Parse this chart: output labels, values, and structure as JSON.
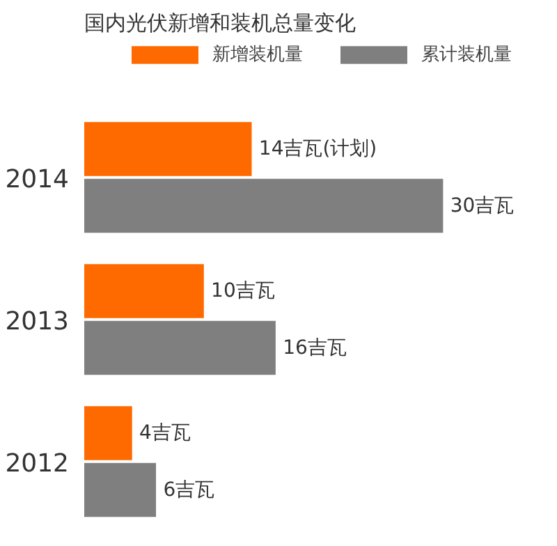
{
  "chart_data": {
    "type": "bar",
    "orientation": "horizontal",
    "title": "国内光伏新增和装机总量变化",
    "categories": [
      "2014",
      "2013",
      "2012"
    ],
    "series": [
      {
        "name": "新增装机量",
        "color": "#ff6a00",
        "values": [
          14,
          10,
          4
        ],
        "value_labels": [
          "14吉瓦(计划)",
          "10吉瓦",
          "4吉瓦"
        ]
      },
      {
        "name": "累计装机量",
        "color": "#7f7f7f",
        "values": [
          30,
          16,
          6
        ],
        "value_labels": [
          "30吉瓦",
          "16吉瓦",
          "6吉瓦"
        ]
      }
    ],
    "legend": "top",
    "tick_labels": "y"
  }
}
